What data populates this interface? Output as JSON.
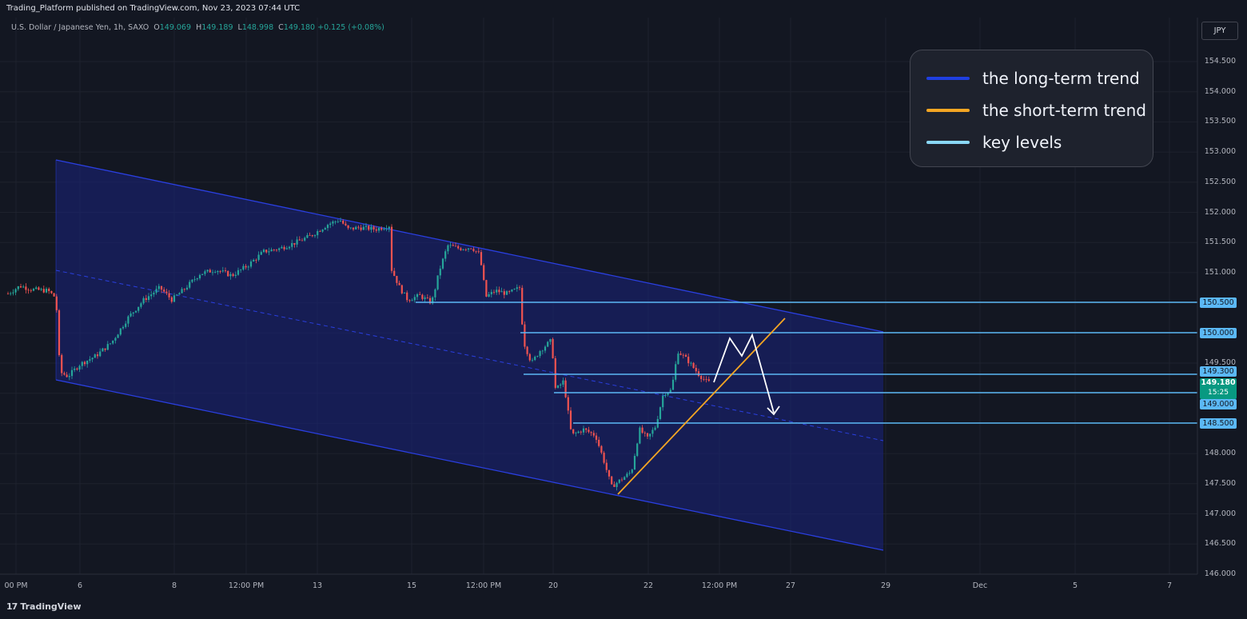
{
  "header": {
    "publish_line": "Trading_Platform published on TradingView.com, Nov 23, 2023 07:44 UTC"
  },
  "symbol": {
    "name": "U.S. Dollar / Japanese Yen, 1h, SAXO",
    "open_label": "O",
    "open": "149.069",
    "high_label": "H",
    "high": "149.189",
    "low_label": "L",
    "low": "148.998",
    "close_label": "C",
    "close": "149.180",
    "change": "+0.125 (+0.08%)"
  },
  "currency_button": "JPY",
  "legend": {
    "items": [
      {
        "label": "the long-term trend",
        "color": "#1f3fe0"
      },
      {
        "label": "the short-term trend",
        "color": "#f5a623"
      },
      {
        "label": "key levels",
        "color": "#8ad8f8"
      }
    ]
  },
  "price_axis": {
    "ticks": [
      "154.500",
      "154.000",
      "153.500",
      "153.000",
      "152.500",
      "152.000",
      "151.500",
      "151.000",
      "150.500",
      "150.000",
      "149.500",
      "149.000",
      "148.500",
      "148.000",
      "147.500",
      "147.000",
      "146.500",
      "146.000"
    ]
  },
  "key_levels": {
    "labels": [
      "150.500",
      "150.000",
      "149.300",
      "149.000",
      "148.500"
    ],
    "color": "#5bb8f5"
  },
  "current_price": {
    "price": "149.180",
    "countdown": "15:25",
    "color": "#089981"
  },
  "time_axis": {
    "labels": [
      "00 PM",
      "6",
      "8",
      "12:00 PM",
      "13",
      "15",
      "12:00 PM",
      "20",
      "22",
      "12:00 PM",
      "27",
      "29",
      "Dec",
      "5",
      "7"
    ]
  },
  "colors": {
    "background": "#131722",
    "bull_candle": "#26a69a",
    "bear_candle": "#ef5350",
    "channel_fill": "#1a237e",
    "channel_line": "#2a3fe0",
    "short_trend": "#f5a623",
    "projection": "#ffffff"
  },
  "footer": {
    "brand": "TradingView"
  }
}
